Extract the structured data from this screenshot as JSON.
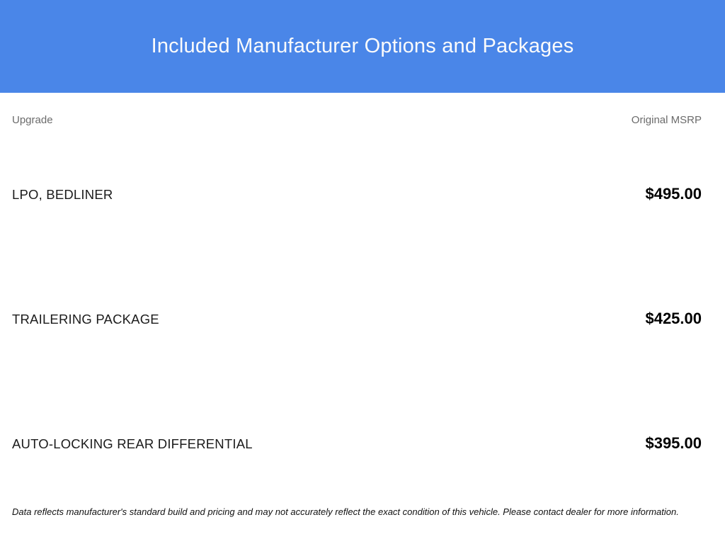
{
  "banner": {
    "title": "Included Manufacturer Options and Packages",
    "background_color": "#4a86e8",
    "text_color": "#fbfbfb"
  },
  "table": {
    "columns": {
      "upgrade": "Upgrade",
      "msrp": "Original MSRP"
    },
    "rows": [
      {
        "name": "LPO, BEDLINER",
        "price": "$495.00"
      },
      {
        "name": "TRAILERING PACKAGE",
        "price": "$425.00"
      },
      {
        "name": "AUTO-LOCKING REAR DIFFERENTIAL",
        "price": "$395.00"
      }
    ]
  },
  "footer": {
    "disclaimer": "Data reflects manufacturer's standard build and pricing and may not accurately reflect the exact condition of this vehicle. Please contact dealer for more information."
  }
}
